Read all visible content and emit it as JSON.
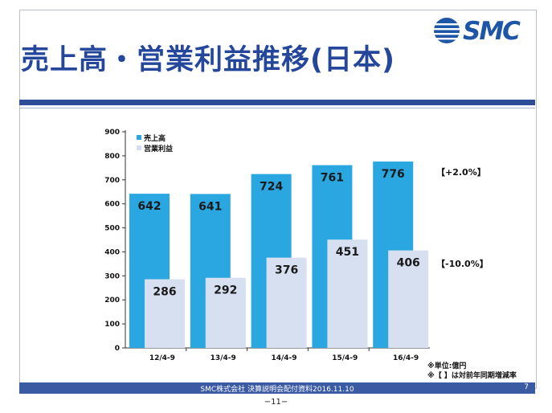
{
  "header": {
    "title": "売上高・営業利益推移(日本)",
    "logo_text": "SMC"
  },
  "chart_data": {
    "type": "bar",
    "categories": [
      "12/4-9",
      "13/4-9",
      "14/4-9",
      "15/4-9",
      "16/4-9"
    ],
    "series": [
      {
        "name": "売上高",
        "color": "#2aa6e0",
        "values": [
          642,
          641,
          724,
          761,
          776
        ]
      },
      {
        "name": "営業利益",
        "color": "#d6e0f1",
        "values": [
          286,
          292,
          376,
          451,
          406
        ]
      }
    ],
    "yticks": [
      0,
      100,
      200,
      300,
      400,
      500,
      600,
      700,
      800,
      900
    ],
    "ylim": [
      0,
      900
    ],
    "legend_position": "top-left",
    "title": "",
    "xlabel": "",
    "ylabel": "",
    "yoy_changes": {
      "sales": "【+2.0%】",
      "operating_profit": "【-10.0%】"
    }
  },
  "notes": {
    "unit": "※単位:億円",
    "bracket": "※【 】は対前年同期増減率"
  },
  "footer": {
    "text": "SMC株式会社 決算説明会配付資料2016.11.10",
    "slide_number": "7",
    "page": "−11−"
  }
}
